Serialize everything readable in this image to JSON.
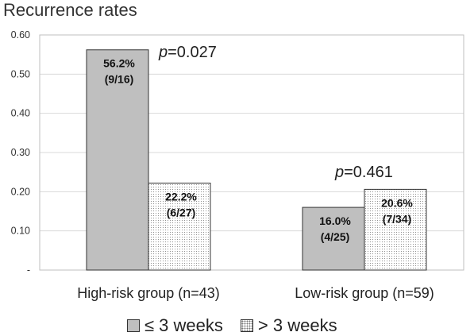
{
  "chart_data": {
    "type": "bar",
    "title": "Recurrence rates",
    "categories": [
      "High-risk group (n=43)",
      "Low-risk group (n=59)"
    ],
    "series": [
      {
        "name": "≤ 3 weeks",
        "values": [
          0.562,
          0.16
        ],
        "labels": [
          "56.2%\n(9/16)",
          "16.0%\n(4/25)"
        ]
      },
      {
        "name": "> 3 weeks",
        "values": [
          0.222,
          0.206
        ],
        "labels": [
          "22.2%\n(6/27)",
          "20.6%\n(7/34)"
        ]
      }
    ],
    "annotations": [
      {
        "prefix": "p",
        "text": "=0.027",
        "category": 0
      },
      {
        "prefix": "p",
        "text": "=0.461",
        "category": 1
      }
    ],
    "ylim": [
      0,
      0.6
    ],
    "yticks": [
      "-",
      "0.10",
      "0.20",
      "0.30",
      "0.40",
      "0.50",
      "0.60"
    ],
    "grid": true,
    "legend_position": "bottom",
    "colors": {
      "series1": "#bfbfbf",
      "border": "#333333",
      "grid": "#d9d9d9"
    }
  }
}
